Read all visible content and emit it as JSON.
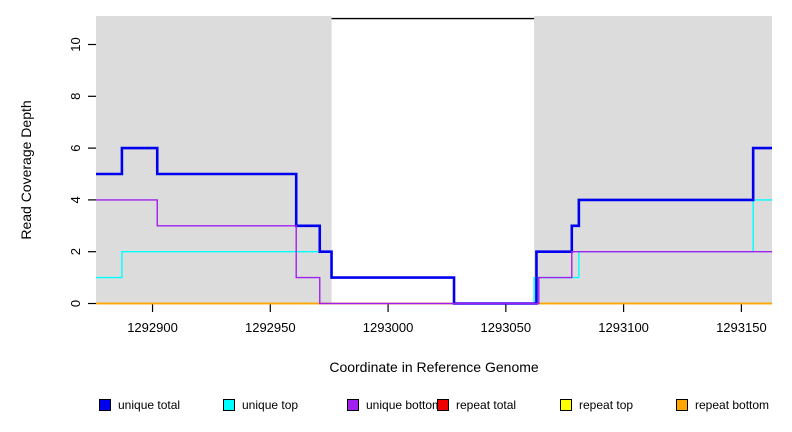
{
  "figure": {
    "xlabel": "Coordinate in Reference Genome",
    "ylabel": "Read Coverage Depth"
  },
  "chart_data": {
    "type": "line",
    "subtype": "step-coverage-plot",
    "title": "",
    "xlabel": "Coordinate in Reference Genome",
    "ylabel": "Read Coverage Depth",
    "xlim": [
      1292876,
      1293163
    ],
    "ylim": [
      0,
      11.2
    ],
    "x_ticks": [
      1292900,
      1292950,
      1293000,
      1293050,
      1293100,
      1293150
    ],
    "y_ticks": [
      0,
      2,
      4,
      6,
      8,
      10
    ],
    "grid": false,
    "plot_bg_color": "#dcdcdc",
    "highlight_region": {
      "x0": 1292976,
      "x1": 1293062,
      "color": "#ffffff"
    },
    "annotation_line": {
      "y": 11,
      "x0": 1292976,
      "x1": 1293062,
      "color": "#000000"
    },
    "legend_position": "bottom",
    "series": [
      {
        "name": "repeat total",
        "color": "#ee0000",
        "width": 1.4,
        "points": [
          [
            1292876,
            0
          ],
          [
            1293163,
            0
          ]
        ]
      },
      {
        "name": "repeat top",
        "color": "#ffff00",
        "width": 1.4,
        "points": [
          [
            1292876,
            0
          ],
          [
            1293163,
            0
          ]
        ]
      },
      {
        "name": "repeat bottom",
        "color": "#ffa500",
        "width": 1.4,
        "points": [
          [
            1292876,
            0
          ],
          [
            1293163,
            0
          ]
        ]
      },
      {
        "name": "unique top",
        "color": "#00ffff",
        "width": 1.4,
        "points": [
          [
            1292876,
            1
          ],
          [
            1292887,
            1
          ],
          [
            1292887,
            2
          ],
          [
            1292976,
            2
          ],
          [
            1292976,
            1
          ],
          [
            1293028,
            1
          ],
          [
            1293028,
            0
          ],
          [
            1293062,
            0
          ],
          [
            1293062,
            1
          ],
          [
            1293081,
            1
          ],
          [
            1293081,
            2
          ],
          [
            1293155,
            2
          ],
          [
            1293155,
            4
          ],
          [
            1293163,
            4
          ]
        ]
      },
      {
        "name": "unique total",
        "color": "#0000ee",
        "width": 2.6,
        "points": [
          [
            1292876,
            5
          ],
          [
            1292887,
            5
          ],
          [
            1292887,
            6
          ],
          [
            1292902,
            6
          ],
          [
            1292902,
            5
          ],
          [
            1292961,
            5
          ],
          [
            1292961,
            3
          ],
          [
            1292971,
            3
          ],
          [
            1292971,
            2
          ],
          [
            1292976,
            2
          ],
          [
            1292976,
            1
          ],
          [
            1293028,
            1
          ],
          [
            1293028,
            0
          ],
          [
            1293063,
            0
          ],
          [
            1293063,
            2
          ],
          [
            1293078,
            2
          ],
          [
            1293078,
            3
          ],
          [
            1293081,
            3
          ],
          [
            1293081,
            4
          ],
          [
            1293155,
            4
          ],
          [
            1293155,
            6
          ],
          [
            1293163,
            6
          ]
        ]
      },
      {
        "name": "unique bottom",
        "color": "#a020f0",
        "width": 1.4,
        "points": [
          [
            1292876,
            4
          ],
          [
            1292902,
            4
          ],
          [
            1292902,
            3
          ],
          [
            1292961,
            3
          ],
          [
            1292961,
            1
          ],
          [
            1292971,
            1
          ],
          [
            1292971,
            0
          ],
          [
            1293064,
            0
          ],
          [
            1293064,
            1
          ],
          [
            1293078,
            1
          ],
          [
            1293078,
            2
          ],
          [
            1293163,
            2
          ]
        ]
      }
    ],
    "legend": [
      {
        "label": "unique total",
        "color": "#0000ee"
      },
      {
        "label": "unique top",
        "color": "#00ffff"
      },
      {
        "label": "unique bottom",
        "color": "#a020f0"
      },
      {
        "label": "repeat total",
        "color": "#ee0000"
      },
      {
        "label": "repeat top",
        "color": "#ffff00"
      },
      {
        "label": "repeat bottom",
        "color": "#ffa500"
      }
    ]
  }
}
